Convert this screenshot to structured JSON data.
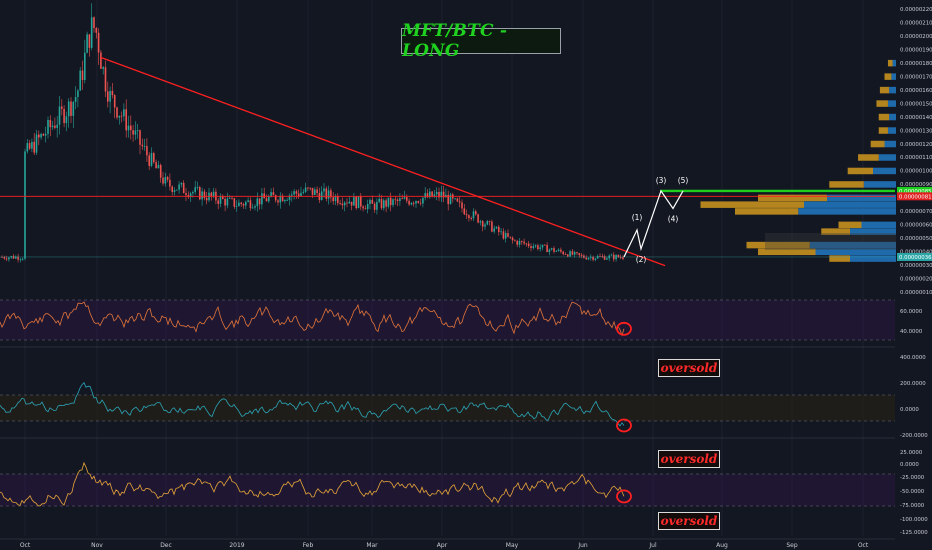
{
  "chart_data": {
    "type": "candlestick",
    "title": "MFT/BTC - LONG",
    "x_ticks": [
      "Oct",
      "Nov",
      "Dec",
      "2019",
      "Feb",
      "Mar",
      "Apr",
      "May",
      "Jun",
      "Jul",
      "Aug",
      "Sep",
      "Oct"
    ],
    "price_axis": {
      "ticks": [
        "0.00000220",
        "0.00000210",
        "0.00000200",
        "0.00000190",
        "0.00000180",
        "0.00000170",
        "0.00000160",
        "0.00000150",
        "0.00000140",
        "0.00000130",
        "0.00000120",
        "0.00000110",
        "0.00000100",
        "0.00000090",
        "0.00000080",
        "0.00000070",
        "0.00000060",
        "0.00000050",
        "0.00000040",
        "0.00000030",
        "0.00000020",
        "0.00000010"
      ],
      "range": [
        1e-07,
        2.2e-06
      ],
      "current_price_label": "0.00000036",
      "horizontal_line_label": "0.00000081",
      "green_line_label": "0.00000085"
    },
    "series": [
      {
        "name": "MFT/BTC",
        "months": [
          "Oct",
          "Nov",
          "Dec",
          "2019",
          "Feb",
          "Mar",
          "Apr",
          "May",
          "Jun"
        ],
        "close_estimates": [
          1.12e-06,
          1.7e-06,
          9e-07,
          7.5e-07,
          8.5e-07,
          7.4e-07,
          8.2e-07,
          4.8e-07,
          3.6e-07
        ]
      }
    ],
    "trendline": {
      "from": [
        "Nov",
        1.84e-06
      ],
      "to": [
        "Jun",
        3.4e-07
      ]
    },
    "elliott_waves": [
      {
        "label": "(1)",
        "price": 5.6e-07
      },
      {
        "label": "(2)",
        "price": 4.2e-07
      },
      {
        "label": "(3)",
        "price": 8.5e-07
      },
      {
        "label": "(4)",
        "price": 7.2e-07
      },
      {
        "label": "(5)",
        "price": 8.5e-07
      }
    ],
    "volume_profile": [
      {
        "price": 1.8e-06,
        "gold": 4,
        "blue": 3
      },
      {
        "price": 1.7e-06,
        "gold": 6,
        "blue": 4
      },
      {
        "price": 1.6e-06,
        "gold": 8,
        "blue": 6
      },
      {
        "price": 1.5e-06,
        "gold": 10,
        "blue": 7
      },
      {
        "price": 1.4e-06,
        "gold": 9,
        "blue": 6
      },
      {
        "price": 1.3e-06,
        "gold": 8,
        "blue": 7
      },
      {
        "price": 1.2e-06,
        "gold": 12,
        "blue": 10
      },
      {
        "price": 1.1e-06,
        "gold": 18,
        "blue": 15
      },
      {
        "price": 1e-06,
        "gold": 22,
        "blue": 20
      },
      {
        "price": 9e-07,
        "gold": 30,
        "blue": 28
      },
      {
        "price": 8e-07,
        "gold": 60,
        "blue": 60
      },
      {
        "price": 7.5e-07,
        "gold": 90,
        "blue": 80
      },
      {
        "price": 7e-07,
        "gold": 55,
        "blue": 85
      },
      {
        "price": 6e-07,
        "gold": 20,
        "blue": 30
      },
      {
        "price": 5.5e-07,
        "gold": 25,
        "blue": 40
      },
      {
        "price": 4.5e-07,
        "gold": 55,
        "blue": 75
      },
      {
        "price": 4e-07,
        "gold": 50,
        "blue": 70
      },
      {
        "price": 3.5e-07,
        "gold": 18,
        "blue": 40
      }
    ],
    "indicators": [
      {
        "name": "",
        "ticks": [
          "60.0000",
          "40.0000"
        ],
        "range": [
          20,
          80
        ],
        "state": "oversold",
        "color": "#e2743a"
      },
      {
        "name": "",
        "ticks": [
          "400.0000",
          "200.0000",
          "0.0000",
          "-200.0000"
        ],
        "range": [
          -300,
          450
        ],
        "state": "oversold",
        "color": "#2aa6b8"
      },
      {
        "name": "",
        "ticks": [
          "25.0000",
          "0.0000",
          "-25.0000",
          "-50.0000",
          "-75.0000",
          "-100.0000",
          "-125.0000"
        ],
        "range": [
          -130,
          30
        ],
        "state": "oversold",
        "color": "#e8a53a"
      }
    ],
    "annotations": [
      "oversold",
      "oversold",
      "oversold"
    ],
    "colors": {
      "up": "#26a69a",
      "down": "#ef5350",
      "trendline": "#ff2020",
      "green_line": "#1ecf1e",
      "background": "#131722"
    }
  },
  "labels": {
    "title": "MFT/BTC - LONG",
    "oversold_1": "oversold",
    "oversold_2": "oversold",
    "oversold_3": "oversold"
  }
}
